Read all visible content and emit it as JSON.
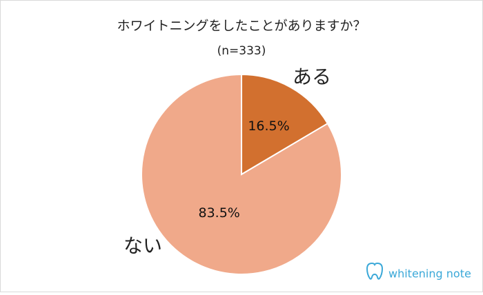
{
  "chart_data": {
    "type": "pie",
    "title": "ホワイトニングをしたことがありますか？",
    "subtitle": "(n=333)",
    "categories": [
      "ある",
      "ない"
    ],
    "values": [
      16.5,
      83.5
    ],
    "value_labels": [
      "16.5%",
      "83.5%"
    ],
    "colors": [
      "#d2702f",
      "#f0a98a"
    ]
  },
  "watermark": "whitening note"
}
